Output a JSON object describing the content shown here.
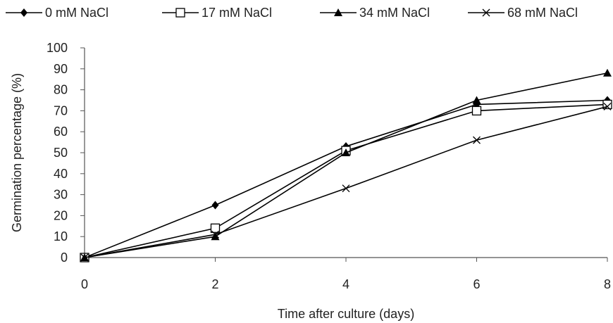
{
  "chart_data": {
    "type": "line",
    "xlabel": "Time after culture (days)",
    "ylabel": "Germination percentage (%)",
    "x": [
      0,
      2,
      4,
      6,
      8
    ],
    "xlim": [
      0,
      8
    ],
    "ylim": [
      0,
      100
    ],
    "xticks": [
      "0",
      "2",
      "4",
      "6",
      "8"
    ],
    "yticks": [
      "0",
      "10",
      "20",
      "30",
      "40",
      "50",
      "60",
      "70",
      "80",
      "90",
      "100"
    ],
    "grid": false,
    "legend_position": "top",
    "series": [
      {
        "name": "0 mM NaCl",
        "marker": "diamond-filled",
        "values": [
          0,
          25,
          53,
          73,
          75
        ]
      },
      {
        "name": "17 mM NaCl",
        "marker": "square-open",
        "values": [
          0,
          14,
          51,
          70,
          73
        ]
      },
      {
        "name": "34 mM NaCl",
        "marker": "triangle-filled",
        "values": [
          0,
          10,
          50,
          75,
          88
        ]
      },
      {
        "name": "68 mM NaCl",
        "marker": "x",
        "values": [
          0,
          11,
          33,
          56,
          72
        ]
      }
    ],
    "colors": {
      "line": "#000000",
      "axis": "#555555",
      "background": "#ffffff"
    }
  }
}
